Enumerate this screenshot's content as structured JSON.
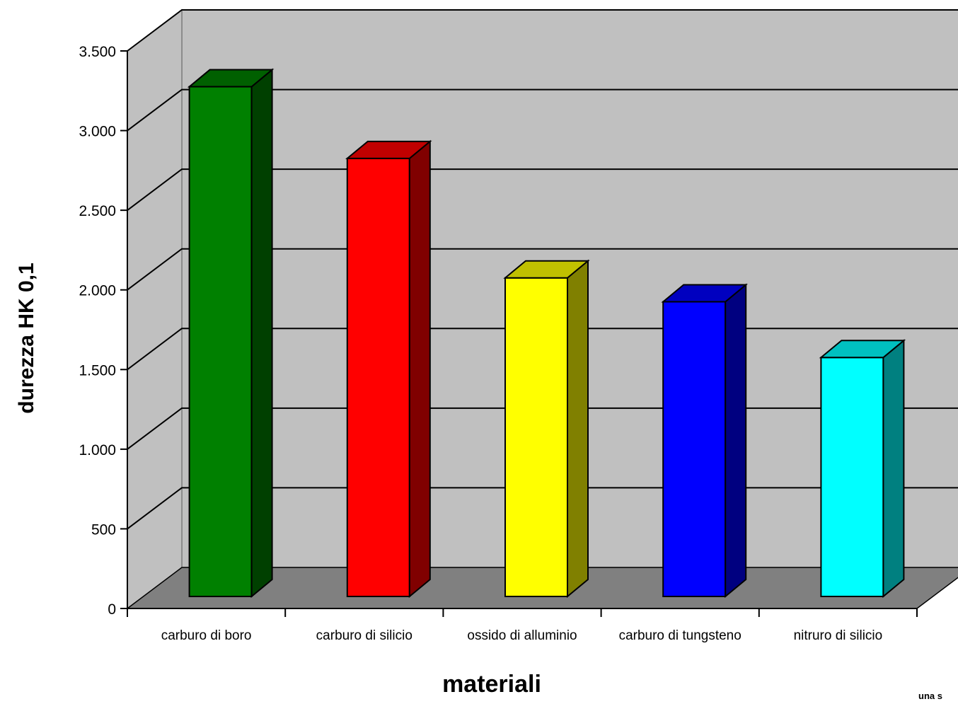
{
  "chart_data": {
    "type": "bar",
    "title": "",
    "xlabel": "materiali",
    "ylabel": "durezza  HK 0,1",
    "ylim": [
      0,
      3500
    ],
    "yticks": [
      0,
      500,
      1000,
      1500,
      2000,
      2500,
      3000,
      3500
    ],
    "ytick_labels": [
      "0",
      "500",
      "1.000",
      "1.500",
      "2.000",
      "2.500",
      "3.000",
      "3.500"
    ],
    "grid": true,
    "categories": [
      "carburo di boro",
      "carburo di silicio",
      "ossido di alluminio",
      "carburo di tungsteno",
      "nitruro di silicio"
    ],
    "values": [
      3200,
      2750,
      2000,
      1850,
      1500
    ],
    "colors": {
      "front": [
        "#008000",
        "#ff0000",
        "#ffff00",
        "#0000ff",
        "#00ffff"
      ],
      "side": [
        "#004000",
        "#800000",
        "#808000",
        "#000080",
        "#008080"
      ],
      "top": [
        "#006000",
        "#c00000",
        "#c0c000",
        "#0000c0",
        "#00c0c0"
      ],
      "wall": "#c0c0c0",
      "floor": "#808080"
    },
    "note": "una s"
  }
}
